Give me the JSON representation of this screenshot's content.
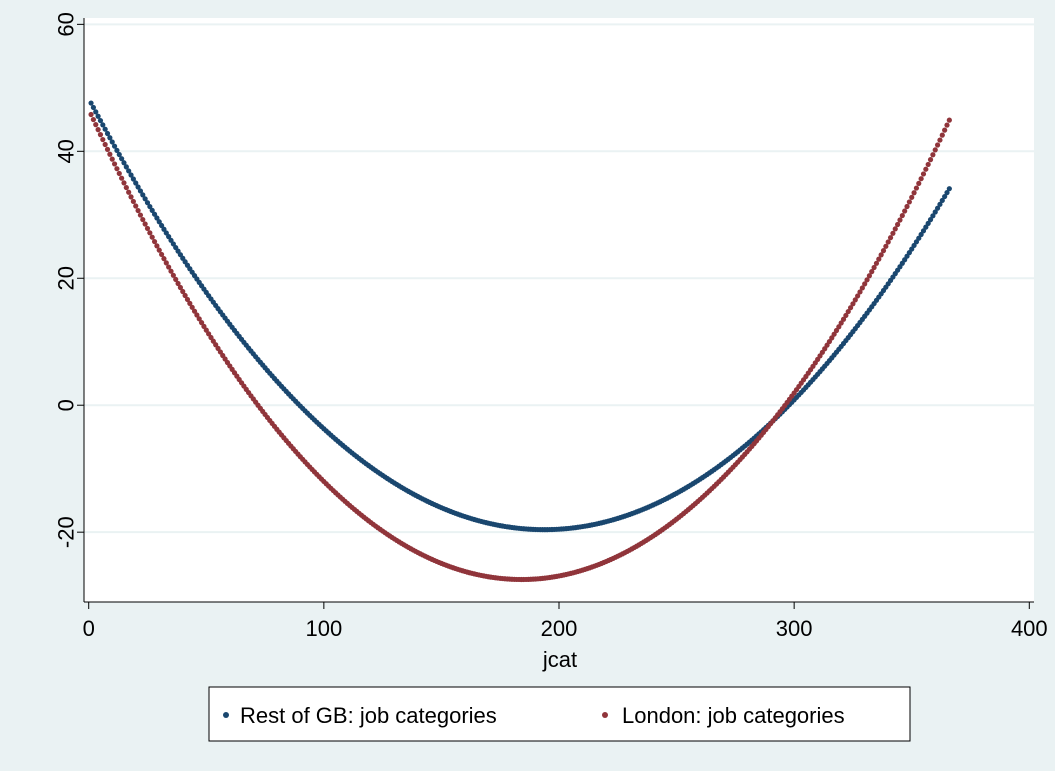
{
  "chart_data": {
    "type": "scatter",
    "title": "",
    "xlabel": "jcat",
    "ylabel": "",
    "xlim": [
      -2,
      402
    ],
    "ylim": [
      -31,
      61
    ],
    "xticks": [
      0,
      100,
      200,
      300,
      400
    ],
    "yticks": [
      -20,
      0,
      20,
      40,
      60
    ],
    "grid": true,
    "legend_position": "bottom",
    "series": [
      {
        "name": "Rest of GB: job categories",
        "color": "#1a476f",
        "x_range": [
          1,
          366
        ],
        "quadratic": [
          0.0018095,
          -0.70104,
          48.3
        ]
      },
      {
        "name": "London: job categories",
        "color": "#90353b",
        "x_range": [
          1,
          366
        ],
        "quadratic": [
          0.002186,
          -0.80468,
          46.6
        ]
      }
    ]
  }
}
